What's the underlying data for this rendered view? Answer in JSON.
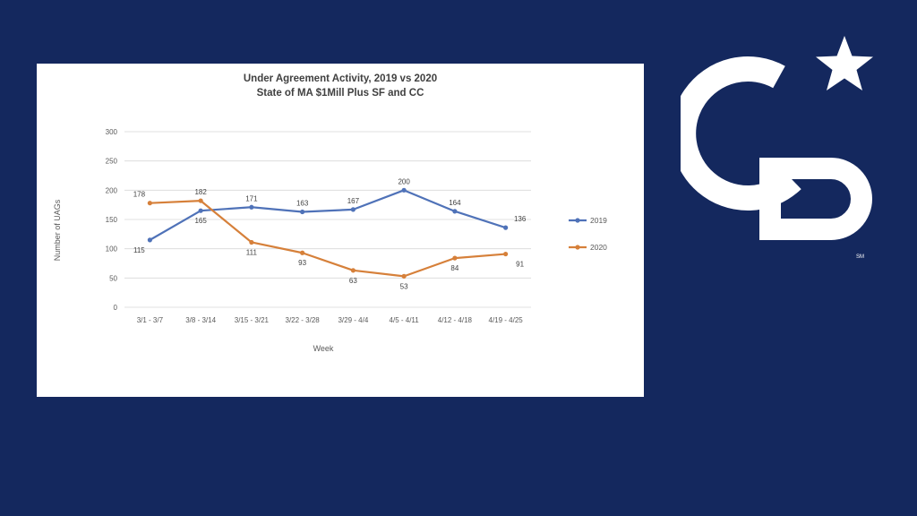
{
  "colors": {
    "background": "#14285e",
    "panel": "#ffffff",
    "series_2019": "#4f72b8",
    "series_2020": "#d6803a",
    "logo": "#ffffff"
  },
  "logo": {
    "icon": "coldwell-banker-cb-star-logo",
    "text": "CB",
    "service_mark": "SM"
  },
  "chart_data": {
    "type": "line",
    "title": "Under Agreement Activity,  2019 vs 2020",
    "subtitle": "State of MA $1Mill Plus SF and CC",
    "xlabel": "Week",
    "ylabel": "Number of UAGs",
    "ylim": [
      0,
      300
    ],
    "yticks": [
      "0",
      "50",
      "100",
      "150",
      "200",
      "250",
      "300"
    ],
    "grid": true,
    "legend_position": "right",
    "categories": [
      "3/1 - 3/7",
      "3/8 - 3/14",
      "3/15 - 3/21",
      "3/22 - 3/28",
      "3/29 - 4/4",
      "4/5 - 4/11",
      "4/12 - 4/18",
      "4/19 - 4/25"
    ],
    "series": [
      {
        "name": "2019",
        "values": [
          115,
          165,
          171,
          163,
          167,
          200,
          164,
          136
        ]
      },
      {
        "name": "2020",
        "values": [
          178,
          182,
          111,
          93,
          63,
          53,
          84,
          91
        ]
      }
    ]
  }
}
